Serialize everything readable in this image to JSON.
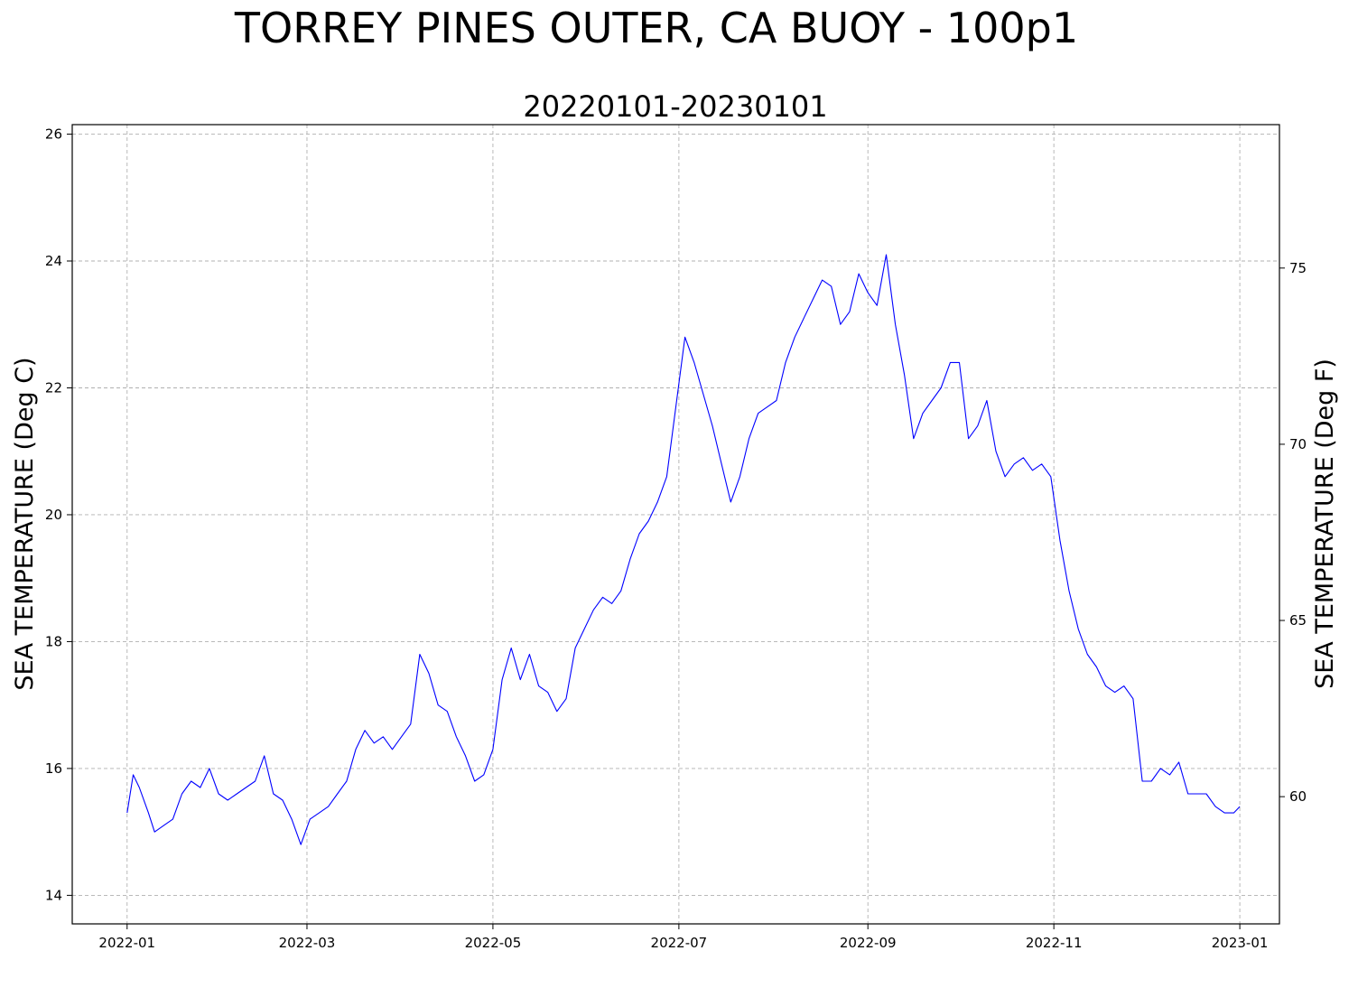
{
  "figure": {
    "suptitle": "TORREY PINES OUTER, CA BUOY - 100p1"
  },
  "chart_data": {
    "type": "line",
    "title": "20220101-20230101",
    "ylabel_left": "SEA TEMPERATURE (Deg C)",
    "ylabel_right": "SEA TEMPERATURE (Deg F)",
    "x_range": [
      "2021-12-14",
      "2023-01-14"
    ],
    "ylim_left": [
      13.55,
      26.15
    ],
    "ylim_right": [
      56.39,
      79.07
    ],
    "x_ticks": [
      "2022-01",
      "2022-03",
      "2022-05",
      "2022-07",
      "2022-09",
      "2022-11",
      "2023-01"
    ],
    "x_tick_dates": [
      "2022-01-01",
      "2022-03-01",
      "2022-05-01",
      "2022-07-01",
      "2022-09-01",
      "2022-11-01",
      "2023-01-01"
    ],
    "y_ticks_left": [
      14,
      16,
      18,
      20,
      22,
      24,
      26
    ],
    "y_ticks_right": [
      60,
      65,
      70,
      75
    ],
    "grid": true,
    "line_color": "#0000ff",
    "series": [
      {
        "x": [
          "2022-01-01",
          "2022-01-03",
          "2022-01-05",
          "2022-01-08",
          "2022-01-10",
          "2022-01-13",
          "2022-01-16",
          "2022-01-19",
          "2022-01-22",
          "2022-01-25",
          "2022-01-28",
          "2022-01-31",
          "2022-02-03",
          "2022-02-06",
          "2022-02-09",
          "2022-02-12",
          "2022-02-15",
          "2022-02-18",
          "2022-02-21",
          "2022-02-24",
          "2022-02-27",
          "2022-03-02",
          "2022-03-05",
          "2022-03-08",
          "2022-03-11",
          "2022-03-14",
          "2022-03-17",
          "2022-03-20",
          "2022-03-23",
          "2022-03-26",
          "2022-03-29",
          "2022-04-01",
          "2022-04-04",
          "2022-04-07",
          "2022-04-10",
          "2022-04-13",
          "2022-04-16",
          "2022-04-19",
          "2022-04-22",
          "2022-04-25",
          "2022-04-28",
          "2022-05-01",
          "2022-05-04",
          "2022-05-07",
          "2022-05-10",
          "2022-05-13",
          "2022-05-16",
          "2022-05-19",
          "2022-05-22",
          "2022-05-25",
          "2022-05-28",
          "2022-05-31",
          "2022-06-03",
          "2022-06-06",
          "2022-06-09",
          "2022-06-12",
          "2022-06-15",
          "2022-06-18",
          "2022-06-21",
          "2022-06-24",
          "2022-06-27",
          "2022-06-30",
          "2022-07-03",
          "2022-07-06",
          "2022-07-09",
          "2022-07-12",
          "2022-07-15",
          "2022-07-18",
          "2022-07-21",
          "2022-07-24",
          "2022-07-27",
          "2022-07-30",
          "2022-08-02",
          "2022-08-05",
          "2022-08-08",
          "2022-08-11",
          "2022-08-14",
          "2022-08-17",
          "2022-08-20",
          "2022-08-23",
          "2022-08-26",
          "2022-08-29",
          "2022-09-01",
          "2022-09-04",
          "2022-09-07",
          "2022-09-10",
          "2022-09-13",
          "2022-09-16",
          "2022-09-19",
          "2022-09-22",
          "2022-09-25",
          "2022-09-28",
          "2022-10-01",
          "2022-10-04",
          "2022-10-07",
          "2022-10-10",
          "2022-10-13",
          "2022-10-16",
          "2022-10-19",
          "2022-10-22",
          "2022-10-25",
          "2022-10-28",
          "2022-10-31",
          "2022-11-03",
          "2022-11-06",
          "2022-11-09",
          "2022-11-12",
          "2022-11-15",
          "2022-11-18",
          "2022-11-21",
          "2022-11-24",
          "2022-11-27",
          "2022-11-30",
          "2022-12-03",
          "2022-12-06",
          "2022-12-09",
          "2022-12-12",
          "2022-12-15",
          "2022-12-18",
          "2022-12-21",
          "2022-12-24",
          "2022-12-27",
          "2022-12-30",
          "2023-01-01"
        ],
        "values": [
          15.3,
          15.9,
          15.7,
          15.3,
          15.0,
          15.1,
          15.2,
          15.6,
          15.8,
          15.7,
          16.0,
          15.6,
          15.5,
          15.6,
          15.7,
          15.8,
          16.2,
          15.6,
          15.5,
          15.2,
          14.8,
          15.2,
          15.3,
          15.4,
          15.6,
          15.8,
          16.3,
          16.6,
          16.4,
          16.5,
          16.3,
          16.5,
          16.7,
          17.8,
          17.5,
          17.0,
          16.9,
          16.5,
          16.2,
          15.8,
          15.9,
          16.3,
          17.4,
          17.9,
          17.4,
          17.8,
          17.3,
          17.2,
          16.9,
          17.1,
          17.9,
          18.2,
          18.5,
          18.7,
          18.6,
          18.8,
          19.3,
          19.7,
          19.9,
          20.2,
          20.6,
          21.7,
          22.8,
          22.4,
          21.9,
          21.4,
          20.8,
          20.2,
          20.6,
          21.2,
          21.6,
          21.7,
          21.8,
          22.4,
          22.8,
          23.1,
          23.4,
          23.7,
          23.6,
          23.0,
          23.2,
          23.8,
          23.5,
          23.3,
          24.1,
          23.0,
          22.2,
          21.2,
          21.6,
          21.8,
          22.0,
          22.4,
          22.4,
          21.2,
          21.4,
          21.8,
          21.0,
          20.6,
          20.8,
          20.9,
          20.7,
          20.8,
          20.6,
          19.6,
          18.8,
          18.2,
          17.8,
          17.6,
          17.3,
          17.2,
          17.3,
          17.1,
          15.8,
          15.8,
          16.0,
          15.9,
          16.1,
          15.6,
          15.6,
          15.6,
          15.4,
          15.3,
          15.3,
          15.4
        ]
      }
    ]
  }
}
